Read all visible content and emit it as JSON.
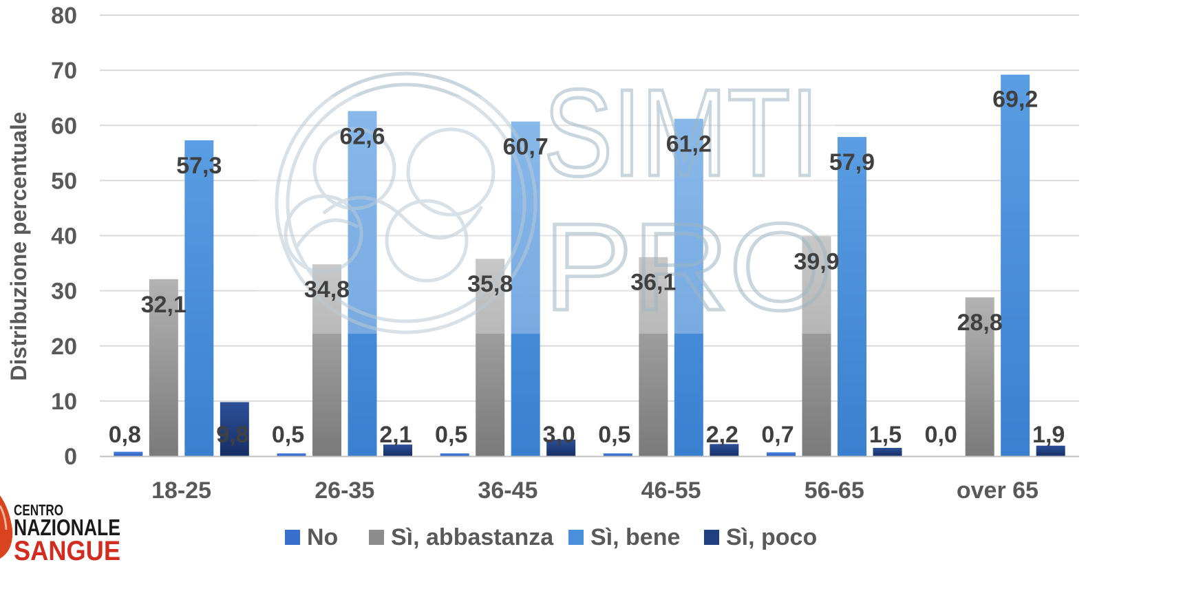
{
  "chart_data": {
    "type": "bar",
    "ylabel": "Distribuzione percentuale",
    "ylim": [
      0,
      80
    ],
    "yticks": [
      "0",
      "10",
      "20",
      "30",
      "40",
      "50",
      "60",
      "70",
      "80"
    ],
    "grid": true,
    "legend_position": "bottom",
    "categories": [
      "18-25",
      "26-35",
      "36-45",
      "46-55",
      "56-65",
      "over 65"
    ],
    "series": [
      {
        "name": "No",
        "color": "#3a6fd0",
        "values": [
          0.8,
          0.5,
          0.5,
          0.5,
          0.7,
          0.0
        ],
        "labels": [
          "0,8",
          "0,5",
          "0,5",
          "0,5",
          "0,7",
          "0,0"
        ]
      },
      {
        "name": "Sì, abbastanza",
        "color": "#8c8c8c",
        "values": [
          32.1,
          34.8,
          35.8,
          36.1,
          39.9,
          28.8
        ],
        "labels": [
          "32,1",
          "34,8",
          "35,8",
          "36,1",
          "39,9",
          "28,8"
        ]
      },
      {
        "name": "Sì, bene",
        "color": "#4a8fdb",
        "values": [
          57.3,
          62.6,
          60.7,
          61.2,
          57.9,
          69.2
        ],
        "labels": [
          "57,3",
          "62,6",
          "60,7",
          "61,2",
          "57,9",
          "69,2"
        ]
      },
      {
        "name": "Sì, poco",
        "color": "#1f3f80",
        "values": [
          9.8,
          2.1,
          3.0,
          2.2,
          1.5,
          1.9
        ],
        "labels": [
          "9,8",
          "2,1",
          "3,0",
          "2,2",
          "1,5",
          "1,9"
        ]
      }
    ]
  },
  "watermark": {
    "line1": "SIMTI",
    "line2": "PRO"
  },
  "logo": {
    "line1": "CENTRO",
    "line2": "NAZIONALE",
    "line3": "SANGUE"
  }
}
